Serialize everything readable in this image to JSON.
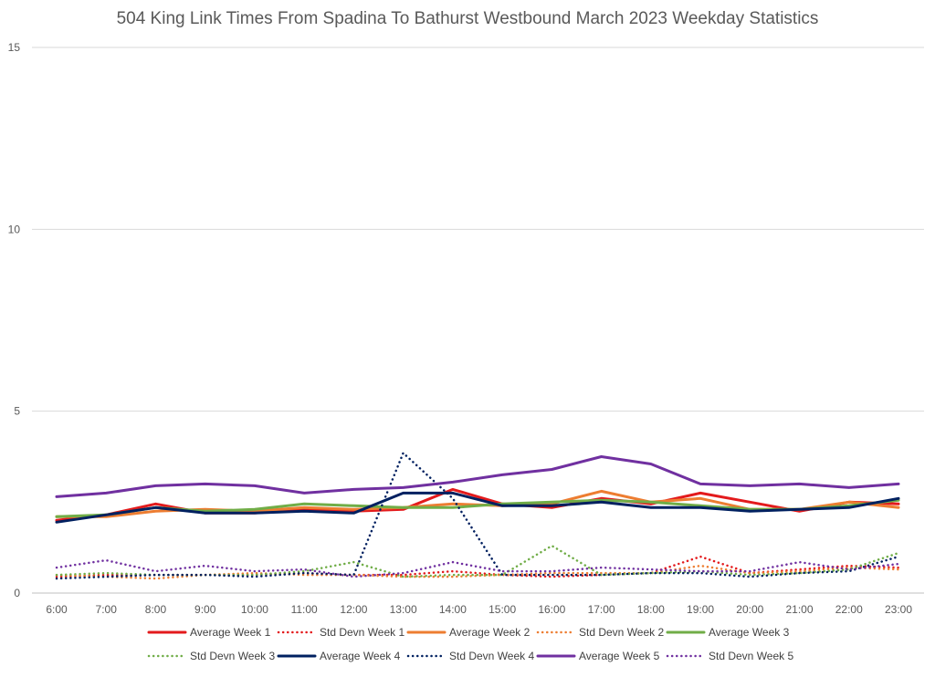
{
  "chart_data": {
    "type": "line",
    "title": "504 King Link Times From Spadina To Bathurst Westbound March 2023 Weekday Statistics",
    "xlabel": "",
    "ylabel": "",
    "ylim": [
      0,
      15
    ],
    "yticks": [
      0,
      5,
      10,
      15
    ],
    "grid": true,
    "legend_position": "bottom",
    "categories": [
      "6:00",
      "7:00",
      "8:00",
      "9:00",
      "10:00",
      "11:00",
      "12:00",
      "13:00",
      "14:00",
      "15:00",
      "16:00",
      "17:00",
      "18:00",
      "19:00",
      "20:00",
      "21:00",
      "22:00",
      "23:00"
    ],
    "series": [
      {
        "name": "Average Week 1",
        "color": "#e31a1c",
        "style": "solid",
        "values": [
          2.0,
          2.15,
          2.45,
          2.2,
          2.2,
          2.3,
          2.25,
          2.3,
          2.85,
          2.45,
          2.35,
          2.6,
          2.45,
          2.75,
          2.5,
          2.25,
          2.5,
          2.45
        ]
      },
      {
        "name": "Std Devn Week 1",
        "color": "#e31a1c",
        "style": "dotted",
        "values": [
          0.45,
          0.5,
          0.5,
          0.5,
          0.5,
          0.55,
          0.5,
          0.5,
          0.6,
          0.5,
          0.45,
          0.5,
          0.55,
          1.0,
          0.55,
          0.65,
          0.75,
          0.7
        ]
      },
      {
        "name": "Average Week 2",
        "color": "#ed7d31",
        "style": "solid",
        "values": [
          2.1,
          2.1,
          2.25,
          2.3,
          2.25,
          2.35,
          2.3,
          2.35,
          2.45,
          2.4,
          2.45,
          2.8,
          2.5,
          2.6,
          2.3,
          2.3,
          2.5,
          2.35
        ]
      },
      {
        "name": "Std Devn Week 2",
        "color": "#ed7d31",
        "style": "dotted",
        "values": [
          0.5,
          0.45,
          0.4,
          0.5,
          0.55,
          0.5,
          0.5,
          0.45,
          0.45,
          0.5,
          0.55,
          0.55,
          0.55,
          0.75,
          0.55,
          0.6,
          0.7,
          0.65
        ]
      },
      {
        "name": "Average Week 3",
        "color": "#70ad47",
        "style": "solid",
        "values": [
          2.1,
          2.15,
          2.35,
          2.25,
          2.3,
          2.45,
          2.4,
          2.35,
          2.35,
          2.45,
          2.5,
          2.55,
          2.5,
          2.4,
          2.3,
          2.3,
          2.4,
          2.55
        ]
      },
      {
        "name": "Std Devn Week 3",
        "color": "#70ad47",
        "style": "dotted",
        "values": [
          0.5,
          0.55,
          0.5,
          0.5,
          0.5,
          0.6,
          0.85,
          0.45,
          0.5,
          0.5,
          1.3,
          0.5,
          0.55,
          0.6,
          0.5,
          0.55,
          0.65,
          1.1
        ]
      },
      {
        "name": "Average Week 4",
        "color": "#002060",
        "style": "solid",
        "values": [
          1.95,
          2.15,
          2.35,
          2.2,
          2.2,
          2.25,
          2.2,
          2.75,
          2.75,
          2.4,
          2.4,
          2.5,
          2.35,
          2.35,
          2.25,
          2.3,
          2.35,
          2.6
        ]
      },
      {
        "name": "Std Devn Week 4",
        "color": "#002060",
        "style": "dotted",
        "values": [
          0.4,
          0.45,
          0.5,
          0.5,
          0.45,
          0.55,
          0.5,
          3.85,
          2.6,
          0.5,
          0.5,
          0.5,
          0.55,
          0.55,
          0.45,
          0.55,
          0.6,
          1.0
        ]
      },
      {
        "name": "Average Week 5",
        "color": "#7030a0",
        "style": "solid",
        "values": [
          2.65,
          2.75,
          2.95,
          3.0,
          2.95,
          2.75,
          2.85,
          2.9,
          3.05,
          3.25,
          3.4,
          3.75,
          3.55,
          3.0,
          2.95,
          3.0,
          2.9,
          3.0
        ]
      },
      {
        "name": "Std Devn Week 5",
        "color": "#7030a0",
        "style": "dotted",
        "values": [
          0.7,
          0.9,
          0.6,
          0.75,
          0.6,
          0.65,
          0.45,
          0.55,
          0.85,
          0.6,
          0.6,
          0.7,
          0.65,
          0.6,
          0.6,
          0.85,
          0.65,
          0.8
        ]
      }
    ]
  }
}
